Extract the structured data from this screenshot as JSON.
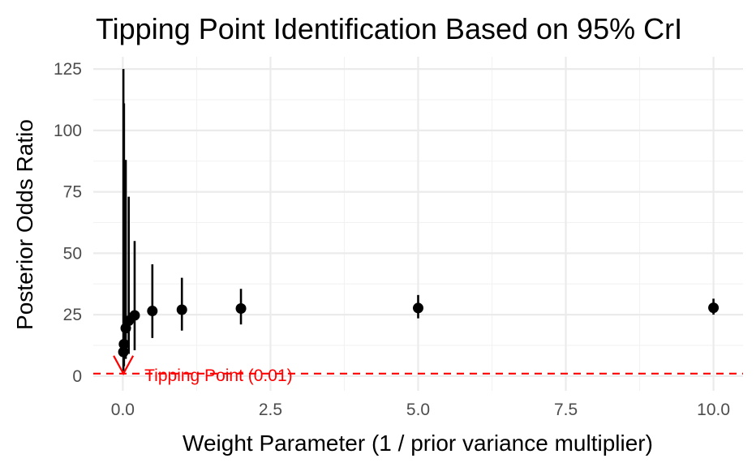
{
  "chart_data": {
    "type": "scatter",
    "title": "Tipping Point Identification Based on 95% CrI",
    "xlabel": "Weight Parameter (1 / prior variance multiplier)",
    "ylabel": "Posterior Odds Ratio",
    "xlim": [
      -0.5,
      10.5
    ],
    "ylim": [
      -6,
      130
    ],
    "x_ticks": [
      0,
      2.5,
      5,
      7.5,
      10
    ],
    "x_tick_labels": [
      "0.0",
      "2.5",
      "5.0",
      "7.5",
      "10.0"
    ],
    "y_ticks": [
      0,
      25,
      50,
      75,
      100,
      125
    ],
    "y_tick_labels": [
      "0",
      "25",
      "50",
      "75",
      "100",
      "125"
    ],
    "grid": true,
    "points": [
      {
        "x": 0.01,
        "y": 9.8,
        "lower": 2,
        "upper": 125
      },
      {
        "x": 0.02,
        "y": 13,
        "lower": 4,
        "upper": 111
      },
      {
        "x": 0.05,
        "y": 19.5,
        "lower": 7,
        "upper": 88
      },
      {
        "x": 0.1,
        "y": 22.5,
        "lower": 9,
        "upper": 73
      },
      {
        "x": 0.2,
        "y": 24.7,
        "lower": 10.5,
        "upper": 55
      },
      {
        "x": 0.5,
        "y": 26.5,
        "lower": 15.5,
        "upper": 45.5
      },
      {
        "x": 1,
        "y": 27,
        "lower": 18.5,
        "upper": 40
      },
      {
        "x": 2,
        "y": 27.5,
        "lower": 21,
        "upper": 35.5
      },
      {
        "x": 5,
        "y": 27.7,
        "lower": 23.5,
        "upper": 33
      },
      {
        "x": 10,
        "y": 27.8,
        "lower": 25,
        "upper": 31.5
      }
    ],
    "reference_line": {
      "y": 1,
      "color": "#ff0000",
      "style": "dashed"
    },
    "annotation": {
      "text": "Tipping Point (0.01)",
      "x": 0.01,
      "y": 1,
      "color": "#ff0000"
    },
    "point_color": "#000000"
  }
}
